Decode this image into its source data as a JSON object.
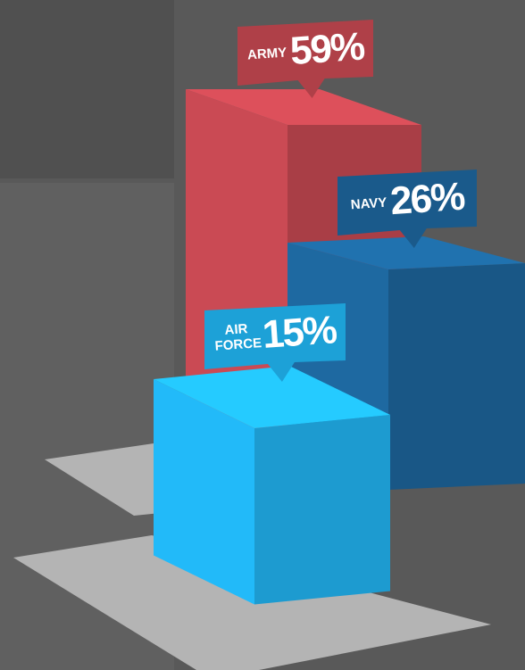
{
  "chart_data": {
    "type": "bar3d",
    "categories": [
      "ARMY",
      "NAVY",
      "AIR FORCE"
    ],
    "values": [
      59,
      26,
      15
    ],
    "value_labels": [
      "59%",
      "26%",
      "15%"
    ],
    "colors": [
      "#b8434c",
      "#1b5f92",
      "#1fa9e2"
    ]
  }
}
